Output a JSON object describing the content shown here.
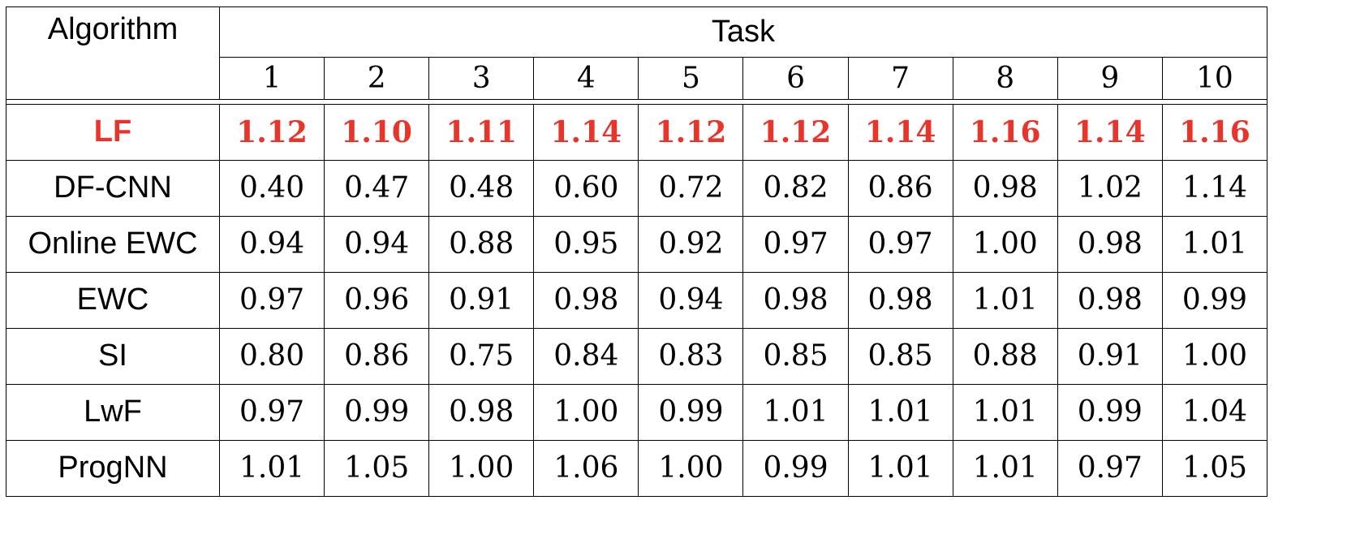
{
  "header": {
    "algorithm_label": "Algorithm",
    "task_label": "Task",
    "task_numbers": [
      "1",
      "2",
      "3",
      "4",
      "5",
      "6",
      "7",
      "8",
      "9",
      "10"
    ]
  },
  "highlight_color": "#e8352b",
  "rows": [
    {
      "algorithm": "LF",
      "values": [
        "1.12",
        "1.10",
        "1.11",
        "1.14",
        "1.12",
        "1.12",
        "1.14",
        "1.16",
        "1.14",
        "1.16"
      ]
    },
    {
      "algorithm": "DF-CNN",
      "values": [
        "0.40",
        "0.47",
        "0.48",
        "0.60",
        "0.72",
        "0.82",
        "0.86",
        "0.98",
        "1.02",
        "1.14"
      ]
    },
    {
      "algorithm": "Online EWC",
      "values": [
        "0.94",
        "0.94",
        "0.88",
        "0.95",
        "0.92",
        "0.97",
        "0.97",
        "1.00",
        "0.98",
        "1.01"
      ]
    },
    {
      "algorithm": "EWC",
      "values": [
        "0.97",
        "0.96",
        "0.91",
        "0.98",
        "0.94",
        "0.98",
        "0.98",
        "1.01",
        "0.98",
        "0.99"
      ]
    },
    {
      "algorithm": "SI",
      "values": [
        "0.80",
        "0.86",
        "0.75",
        "0.84",
        "0.83",
        "0.85",
        "0.85",
        "0.88",
        "0.91",
        "1.00"
      ]
    },
    {
      "algorithm": "LwF",
      "values": [
        "0.97",
        "0.99",
        "0.98",
        "1.00",
        "0.99",
        "1.01",
        "1.01",
        "1.01",
        "0.99",
        "1.04"
      ]
    },
    {
      "algorithm": "ProgNN",
      "values": [
        "1.01",
        "1.05",
        "1.00",
        "1.06",
        "1.00",
        "0.99",
        "1.01",
        "1.01",
        "0.97",
        "1.05"
      ]
    }
  ]
}
